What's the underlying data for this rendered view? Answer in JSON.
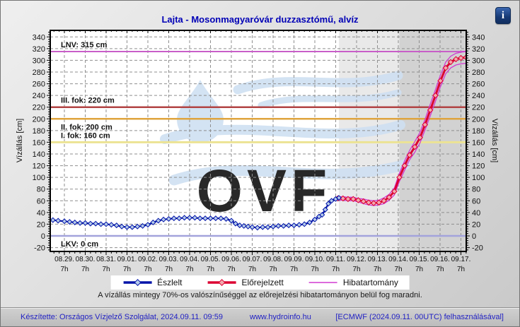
{
  "page": {
    "title": "Lajta - Mosonmagyaróvár duzzasztómű, alvíz",
    "info_glyph": "i",
    "annotation": "A vízállás mintegy 70%-os valószínűséggel az előrejelzési hibatartományon belül fog maradni.",
    "footer": {
      "made_by": "Készítette: Országos Vízjelző Szolgálat, 2024.09.11. 09:59",
      "site": "www.hydroinfo.hu",
      "model": "[ECMWF (2024.09.11. 00UTC) felhasználásával]"
    }
  },
  "legend": [
    {
      "label": "Észlelt",
      "type": "line-marker",
      "color": "#0013a8",
      "marker_fill": "#b5cbe9"
    },
    {
      "label": "Előrejelzett",
      "type": "line-marker",
      "color": "#dc0032",
      "marker_fill": "#f2a9ad"
    },
    {
      "label": "Hibatartomány",
      "type": "line",
      "color": "#d13ad1"
    }
  ],
  "chart_data": {
    "type": "line",
    "title": "Lajta - Mosonmagyaróvár duzzasztómű, alvíz",
    "ylabel_left": "Vízállás [cm]",
    "ylabel_right": "Vízállás [cm]",
    "ylim": [
      -20,
      340
    ],
    "ytick_step": 20,
    "grid": "dashed",
    "x_encoding": "days since 08.29. 07:00",
    "x_dates": [
      "08.29.",
      "08.30.",
      "08.31.",
      "09.01.",
      "09.02.",
      "09.03.",
      "09.04.",
      "09.05.",
      "09.06.",
      "09.07.",
      "09.08.",
      "09.09.",
      "09.10.",
      "09.11.",
      "09.12.",
      "09.13.",
      "09.14.",
      "09.15.",
      "09.16.",
      "09.17."
    ],
    "x_sub_label": "7h",
    "watermark_text": "OVF",
    "watermark_color": "#cfe0f2",
    "regions": [
      {
        "from_day": 13.15,
        "to_day": 16.05,
        "color": "#e9e9e9"
      },
      {
        "from_day": 16.05,
        "to_day": 19.25,
        "color": "#d2d2d2"
      }
    ],
    "reference_lines": [
      {
        "label": "LNV: 315 cm",
        "value": 315,
        "color": "#c85ec8",
        "label_pos": "above"
      },
      {
        "label": "III. fok: 220 cm",
        "value": 220,
        "color": "#b24444",
        "label_pos": "above"
      },
      {
        "label": "II. fok: 200 cm",
        "value": 200,
        "color": "#dfa43e",
        "label_pos": "below"
      },
      {
        "label": "I. fok: 160 cm",
        "value": 160,
        "color": "#ece393",
        "label_pos": "above"
      },
      {
        "label": "LKV: 0 cm",
        "value": 0,
        "color": "#a3a3dc",
        "label_pos": "below"
      }
    ],
    "series": [
      {
        "name": "Észlelt",
        "color": "#0013a8",
        "marker_fill": "#b5cbe9",
        "points": [
          [
            -0.55,
            27
          ],
          [
            -0.3,
            26
          ],
          [
            0,
            25
          ],
          [
            0.25,
            24
          ],
          [
            0.5,
            23
          ],
          [
            0.75,
            22
          ],
          [
            1,
            22
          ],
          [
            1.25,
            21
          ],
          [
            1.5,
            21
          ],
          [
            1.75,
            20
          ],
          [
            2,
            20
          ],
          [
            2.25,
            19
          ],
          [
            2.5,
            18
          ],
          [
            2.75,
            16
          ],
          [
            3,
            15
          ],
          [
            3.25,
            15
          ],
          [
            3.5,
            16
          ],
          [
            3.75,
            17
          ],
          [
            4,
            19
          ],
          [
            4.25,
            23
          ],
          [
            4.5,
            26
          ],
          [
            4.75,
            28
          ],
          [
            5,
            29
          ],
          [
            5.25,
            30
          ],
          [
            5.5,
            30
          ],
          [
            5.75,
            31
          ],
          [
            6,
            31
          ],
          [
            6.25,
            31
          ],
          [
            6.5,
            30
          ],
          [
            6.75,
            30
          ],
          [
            7,
            30
          ],
          [
            7.25,
            30
          ],
          [
            7.5,
            30
          ],
          [
            7.75,
            29
          ],
          [
            8,
            26
          ],
          [
            8.2,
            21
          ],
          [
            8.4,
            18
          ],
          [
            8.6,
            17
          ],
          [
            8.8,
            16
          ],
          [
            9,
            15
          ],
          [
            9.25,
            14
          ],
          [
            9.5,
            15
          ],
          [
            9.75,
            15
          ],
          [
            10,
            16
          ],
          [
            10.25,
            17
          ],
          [
            10.5,
            17
          ],
          [
            10.75,
            18
          ],
          [
            11,
            18
          ],
          [
            11.25,
            19
          ],
          [
            11.5,
            20
          ],
          [
            11.75,
            23
          ],
          [
            12,
            28
          ],
          [
            12.2,
            33
          ],
          [
            12.35,
            36
          ],
          [
            12.5,
            45
          ],
          [
            12.65,
            55
          ],
          [
            12.8,
            60
          ],
          [
            13,
            63
          ],
          [
            13.15,
            65
          ]
        ]
      },
      {
        "name": "Előrejelzett",
        "color": "#dc0032",
        "marker_fill": "#f2a9ad",
        "points": [
          [
            13.1,
            64
          ],
          [
            13.35,
            64
          ],
          [
            13.59,
            63
          ],
          [
            13.84,
            63
          ],
          [
            14.08,
            61
          ],
          [
            14.33,
            59
          ],
          [
            14.58,
            57
          ],
          [
            14.82,
            56
          ],
          [
            15.07,
            57
          ],
          [
            15.31,
            60
          ],
          [
            15.56,
            66
          ],
          [
            15.81,
            76
          ],
          [
            16.05,
            100
          ],
          [
            16.3,
            120
          ],
          [
            16.54,
            138
          ],
          [
            16.79,
            152
          ],
          [
            17.04,
            168
          ],
          [
            17.28,
            190
          ],
          [
            17.53,
            215
          ],
          [
            17.78,
            240
          ],
          [
            18.02,
            265
          ],
          [
            18.27,
            287
          ],
          [
            18.51,
            297
          ],
          [
            18.76,
            302
          ],
          [
            19.0,
            304
          ],
          [
            19.25,
            305
          ]
        ]
      },
      {
        "name": "Hibatartomány",
        "color": "#d13ad1",
        "deltas": [
          3,
          3,
          3,
          3,
          3,
          4,
          4,
          4,
          4,
          5,
          5,
          6,
          7,
          8,
          8,
          9,
          9,
          9,
          10,
          10,
          10,
          10,
          10,
          10,
          10,
          10
        ]
      }
    ]
  }
}
